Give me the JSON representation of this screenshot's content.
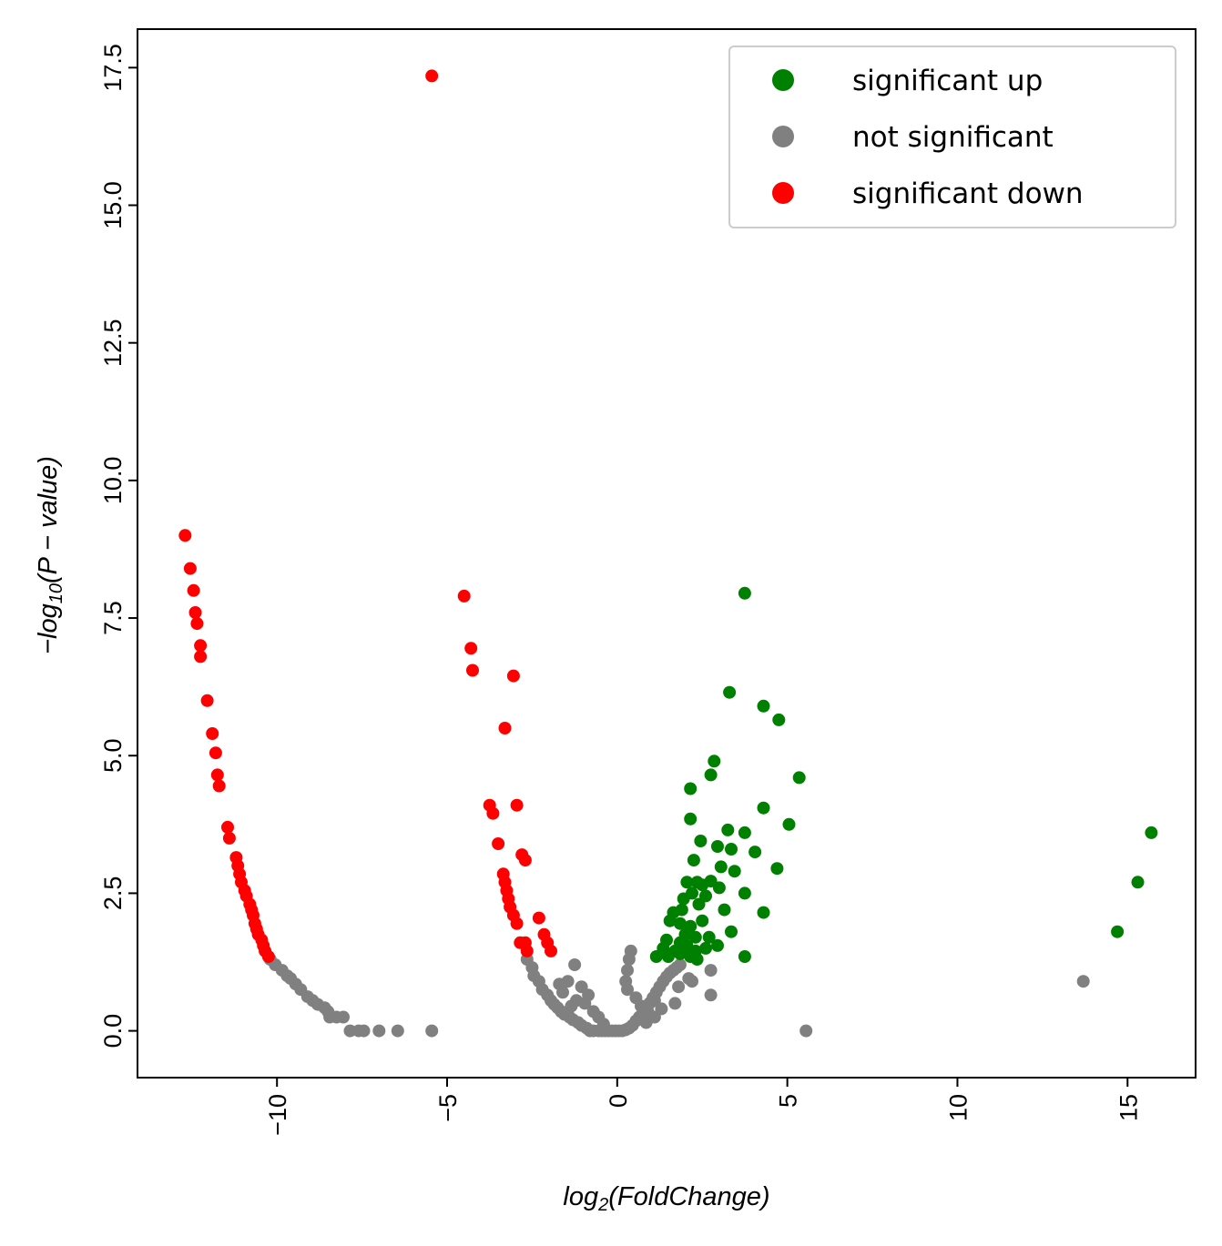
{
  "chart_data": {
    "type": "scatter",
    "title": "",
    "xlabel": "log2(FoldChange)",
    "ylabel": "-log10(P - value)",
    "xlim": [
      -14.1,
      17.0
    ],
    "ylim": [
      -0.85,
      18.2
    ],
    "x_ticks": [
      -10,
      -5,
      0,
      5,
      10,
      15
    ],
    "x_tick_labels": [
      "−10",
      "−5",
      "0",
      "5",
      "10",
      "15"
    ],
    "y_ticks": [
      0.0,
      2.5,
      5.0,
      7.5,
      10.0,
      12.5,
      15.0,
      17.5
    ],
    "y_tick_labels": [
      "0.0",
      "2.5",
      "5.0",
      "7.5",
      "10.0",
      "12.5",
      "15.0",
      "17.5"
    ],
    "grid": false,
    "legend": {
      "position": "top-right",
      "entries": [
        {
          "label": "significant up",
          "color": "#008000"
        },
        {
          "label": "not significant",
          "color": "#808080"
        },
        {
          "label": "significant down",
          "color": "#ff0000"
        }
      ]
    },
    "series": [
      {
        "name": "significant up",
        "color": "#008000",
        "points": [
          [
            3.75,
            7.95
          ],
          [
            3.3,
            6.15
          ],
          [
            4.3,
            5.9
          ],
          [
            4.75,
            5.65
          ],
          [
            2.85,
            4.9
          ],
          [
            2.75,
            4.65
          ],
          [
            5.35,
            4.6
          ],
          [
            2.15,
            4.4
          ],
          [
            4.3,
            4.05
          ],
          [
            2.15,
            3.85
          ],
          [
            5.05,
            3.75
          ],
          [
            3.25,
            3.65
          ],
          [
            3.75,
            3.6
          ],
          [
            2.45,
            3.45
          ],
          [
            2.95,
            3.35
          ],
          [
            3.35,
            3.3
          ],
          [
            4.05,
            3.25
          ],
          [
            2.25,
            3.1
          ],
          [
            3.05,
            2.98
          ],
          [
            4.7,
            2.95
          ],
          [
            3.45,
            2.9
          ],
          [
            2.05,
            2.7
          ],
          [
            2.35,
            2.7
          ],
          [
            2.75,
            2.72
          ],
          [
            2.5,
            2.65
          ],
          [
            3.0,
            2.6
          ],
          [
            1.95,
            2.4
          ],
          [
            2.2,
            2.5
          ],
          [
            2.6,
            2.45
          ],
          [
            3.75,
            2.5
          ],
          [
            1.65,
            2.15
          ],
          [
            1.9,
            2.2
          ],
          [
            2.4,
            2.3
          ],
          [
            3.15,
            2.2
          ],
          [
            4.3,
            2.15
          ],
          [
            1.55,
            2.0
          ],
          [
            1.85,
            1.95
          ],
          [
            2.15,
            1.9
          ],
          [
            2.5,
            2.0
          ],
          [
            2.0,
            1.75
          ],
          [
            2.3,
            1.7
          ],
          [
            2.7,
            1.7
          ],
          [
            3.35,
            1.8
          ],
          [
            1.45,
            1.65
          ],
          [
            1.85,
            1.6
          ],
          [
            2.6,
            1.5
          ],
          [
            2.95,
            1.55
          ],
          [
            1.35,
            1.5
          ],
          [
            1.7,
            1.45
          ],
          [
            2.05,
            1.55
          ],
          [
            2.3,
            1.45
          ],
          [
            1.15,
            1.35
          ],
          [
            1.5,
            1.35
          ],
          [
            1.85,
            1.4
          ],
          [
            2.15,
            1.35
          ],
          [
            2.35,
            1.3
          ],
          [
            3.75,
            1.35
          ],
          [
            15.7,
            3.6
          ],
          [
            15.3,
            2.7
          ],
          [
            14.7,
            1.8
          ]
        ]
      },
      {
        "name": "not significant",
        "color": "#808080",
        "points": [
          [
            -10.2,
            1.3
          ],
          [
            -10.05,
            1.2
          ],
          [
            -9.85,
            1.1
          ],
          [
            -9.7,
            1.0
          ],
          [
            -9.6,
            0.95
          ],
          [
            -9.45,
            0.85
          ],
          [
            -9.3,
            0.75
          ],
          [
            -9.1,
            0.62
          ],
          [
            -8.95,
            0.55
          ],
          [
            -8.8,
            0.48
          ],
          [
            -8.6,
            0.42
          ],
          [
            -8.5,
            0.35
          ],
          [
            -8.45,
            0.25
          ],
          [
            -8.25,
            0.25
          ],
          [
            -8.05,
            0.25
          ],
          [
            -7.85,
            0.0
          ],
          [
            -7.6,
            0.0
          ],
          [
            -7.45,
            0.0
          ],
          [
            -7.0,
            0.0
          ],
          [
            -6.45,
            0.0
          ],
          [
            -5.45,
            0.0
          ],
          [
            -2.65,
            1.3
          ],
          [
            -2.5,
            1.15
          ],
          [
            -2.45,
            1.0
          ],
          [
            -2.3,
            0.9
          ],
          [
            -2.2,
            0.75
          ],
          [
            -2.05,
            0.65
          ],
          [
            -1.95,
            0.55
          ],
          [
            -1.85,
            0.48
          ],
          [
            -1.75,
            0.42
          ],
          [
            -1.65,
            0.35
          ],
          [
            -1.55,
            0.3
          ],
          [
            -1.4,
            0.25
          ],
          [
            -1.3,
            0.2
          ],
          [
            -1.15,
            0.15
          ],
          [
            -1.05,
            0.1
          ],
          [
            -0.9,
            0.05
          ],
          [
            -0.8,
            0.0
          ],
          [
            -0.7,
            0.0
          ],
          [
            -0.55,
            0.0
          ],
          [
            -0.45,
            0.0
          ],
          [
            -0.35,
            0.0
          ],
          [
            -0.25,
            0.0
          ],
          [
            -0.15,
            0.0
          ],
          [
            -0.05,
            0.0
          ],
          [
            -1.25,
            1.2
          ],
          [
            -1.45,
            0.9
          ],
          [
            -1.05,
            0.8
          ],
          [
            -0.85,
            0.65
          ],
          [
            -1.6,
            0.7
          ],
          [
            -1.2,
            0.55
          ],
          [
            -0.95,
            0.5
          ],
          [
            -0.7,
            0.35
          ],
          [
            -0.55,
            0.25
          ],
          [
            -0.4,
            0.12
          ],
          [
            -1.7,
            0.85
          ],
          [
            -1.35,
            0.45
          ],
          [
            0.05,
            0.0
          ],
          [
            0.15,
            0.0
          ],
          [
            0.25,
            0.02
          ],
          [
            0.35,
            0.05
          ],
          [
            0.45,
            0.1
          ],
          [
            0.55,
            0.18
          ],
          [
            0.65,
            0.25
          ],
          [
            0.75,
            0.32
          ],
          [
            0.85,
            0.42
          ],
          [
            0.95,
            0.5
          ],
          [
            1.05,
            0.6
          ],
          [
            1.15,
            0.7
          ],
          [
            1.25,
            0.8
          ],
          [
            1.35,
            0.9
          ],
          [
            1.45,
            0.98
          ],
          [
            1.55,
            1.05
          ],
          [
            1.65,
            1.1
          ],
          [
            1.75,
            1.15
          ],
          [
            1.85,
            1.2
          ],
          [
            0.4,
            1.45
          ],
          [
            0.35,
            1.3
          ],
          [
            0.3,
            1.1
          ],
          [
            0.25,
            0.9
          ],
          [
            0.3,
            0.75
          ],
          [
            0.55,
            0.6
          ],
          [
            0.7,
            0.45
          ],
          [
            0.9,
            0.35
          ],
          [
            1.1,
            0.55
          ],
          [
            1.3,
            0.4
          ],
          [
            2.2,
            0.9
          ],
          [
            2.75,
            1.1
          ],
          [
            2.1,
            0.95
          ],
          [
            1.8,
            0.8
          ],
          [
            1.7,
            0.5
          ],
          [
            2.75,
            0.65
          ],
          [
            1.1,
            0.25
          ],
          [
            0.85,
            0.15
          ],
          [
            5.55,
            0.0
          ],
          [
            13.7,
            0.9
          ]
        ]
      },
      {
        "name": "significant down",
        "color": "#ff0000",
        "points": [
          [
            -5.45,
            17.35
          ],
          [
            -12.7,
            9.0
          ],
          [
            -12.55,
            8.4
          ],
          [
            -12.45,
            8.0
          ],
          [
            -12.4,
            7.6
          ],
          [
            -12.35,
            7.4
          ],
          [
            -12.25,
            7.0
          ],
          [
            -12.25,
            6.8
          ],
          [
            -12.05,
            6.0
          ],
          [
            -11.9,
            5.4
          ],
          [
            -11.8,
            5.05
          ],
          [
            -11.75,
            4.65
          ],
          [
            -11.7,
            4.45
          ],
          [
            -11.45,
            3.7
          ],
          [
            -11.4,
            3.5
          ],
          [
            -11.2,
            3.15
          ],
          [
            -11.15,
            3.0
          ],
          [
            -11.1,
            2.85
          ],
          [
            -11.05,
            2.7
          ],
          [
            -10.95,
            2.55
          ],
          [
            -10.9,
            2.45
          ],
          [
            -10.8,
            2.3
          ],
          [
            -10.75,
            2.2
          ],
          [
            -10.7,
            2.1
          ],
          [
            -10.65,
            1.95
          ],
          [
            -10.6,
            1.85
          ],
          [
            -10.55,
            1.75
          ],
          [
            -10.45,
            1.65
          ],
          [
            -10.4,
            1.55
          ],
          [
            -10.35,
            1.45
          ],
          [
            -10.25,
            1.35
          ],
          [
            -4.5,
            7.9
          ],
          [
            -4.3,
            6.95
          ],
          [
            -4.25,
            6.55
          ],
          [
            -3.05,
            6.45
          ],
          [
            -3.3,
            5.5
          ],
          [
            -3.75,
            4.1
          ],
          [
            -3.65,
            3.95
          ],
          [
            -2.95,
            4.1
          ],
          [
            -3.5,
            3.4
          ],
          [
            -2.8,
            3.2
          ],
          [
            -2.7,
            3.1
          ],
          [
            -3.35,
            2.85
          ],
          [
            -3.3,
            2.7
          ],
          [
            -3.25,
            2.55
          ],
          [
            -3.2,
            2.4
          ],
          [
            -3.15,
            2.25
          ],
          [
            -3.05,
            2.1
          ],
          [
            -2.95,
            1.95
          ],
          [
            -2.3,
            2.05
          ],
          [
            -2.85,
            1.6
          ],
          [
            -2.7,
            1.6
          ],
          [
            -2.15,
            1.75
          ],
          [
            -2.65,
            1.45
          ],
          [
            -2.05,
            1.6
          ],
          [
            -1.95,
            1.45
          ]
        ]
      }
    ]
  }
}
